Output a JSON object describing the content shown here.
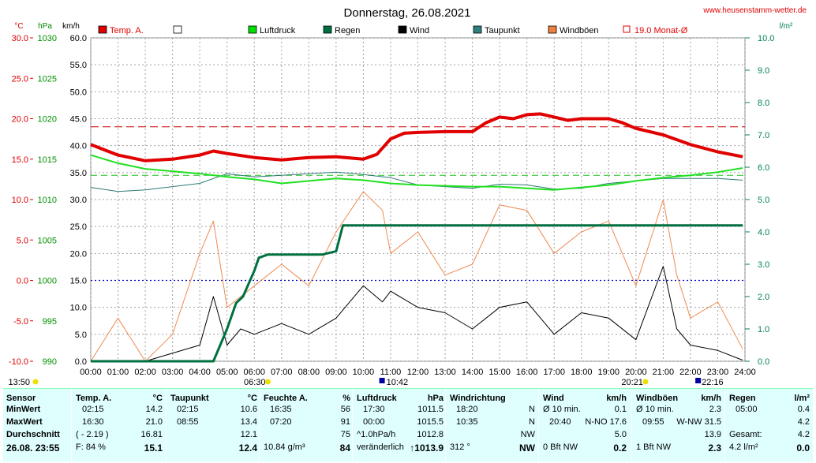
{
  "header": {
    "title": "Donnerstag, 26.08.2021",
    "website": "www.heusenstamm-wetter.de"
  },
  "axes": {
    "unit_temp": "°C",
    "unit_hpa": "hPa",
    "unit_kmh": "km/h",
    "unit_rain": "l/m²",
    "temp_ticks": [
      "30.0",
      "25.0",
      "20.0",
      "15.0",
      "10.0",
      "5.0",
      "0.0",
      "-5.0",
      "-10.0"
    ],
    "hpa_ticks": [
      "1030",
      "1025",
      "1020",
      "1015",
      "1010",
      "1005",
      "1000",
      "995",
      "990"
    ],
    "kmh_ticks": [
      "60.0",
      "55.0",
      "50.0",
      "45.0",
      "40.0",
      "35.0",
      "30.0",
      "25.0",
      "20.0",
      "15.0",
      "10.0",
      "5.0",
      "0.0"
    ],
    "rain_ticks": [
      "10.0",
      "9.0",
      "8.0",
      "7.0",
      "6.0",
      "5.0",
      "4.0",
      "3.0",
      "2.0",
      "1.0",
      "0.0"
    ],
    "time_ticks": [
      "00:00",
      "01:00",
      "02:00",
      "03:00",
      "04:00",
      "05:00",
      "06:00",
      "07:00",
      "08:00",
      "09:00",
      "10:00",
      "11:00",
      "12:00",
      "13:00",
      "14:00",
      "15:00",
      "16:00",
      "17:00",
      "18:00",
      "19:00",
      "20:00",
      "21:00",
      "22:00",
      "23:00",
      "24:00"
    ],
    "markers": {
      "moonrise": "13:50",
      "sunrise": "06:30",
      "windmax": "10:42",
      "sunset": "20:21",
      "moonset": "22:16"
    }
  },
  "legend": [
    {
      "label": "Temp. A.",
      "color": "#e00000",
      "kind": "box"
    },
    {
      "label": "",
      "color": "#ffffff",
      "kind": "box"
    },
    {
      "label": "Luftdruck",
      "color": "#00e000",
      "kind": "box"
    },
    {
      "label": "Regen",
      "color": "#007040",
      "kind": "box"
    },
    {
      "label": "Wind",
      "color": "#000000",
      "kind": "box"
    },
    {
      "label": "Taupunkt",
      "color": "#308080",
      "kind": "box"
    },
    {
      "label": "Windböen",
      "color": "#f08040",
      "kind": "box"
    },
    {
      "label": "19.0 Monat-Ø",
      "color": "#e00000",
      "kind": "outline"
    }
  ],
  "colors": {
    "temp": "#e00000",
    "pressure": "#20e020",
    "rain": "#007040",
    "wind": "#000000",
    "dewpoint": "#307878",
    "gust": "#f08a50",
    "grid": "#a0a0a0"
  },
  "chart_data": {
    "type": "line",
    "x_range": [
      "00:00",
      "24:00"
    ],
    "temp_range_C": [
      -10,
      30
    ],
    "pressure_range_hPa": [
      990,
      1030
    ],
    "wind_range_kmh": [
      0,
      60
    ],
    "rain_range_lm2": [
      0,
      10
    ],
    "reference_lines": {
      "monthly_avg_temp_C": 19.0,
      "zero_temp_C": 0.0,
      "pressure_ref_hPa": 1013.0
    },
    "series": [
      {
        "name": "Temp. A.",
        "unit": "°C",
        "x": [
          "00:00",
          "01:00",
          "02:00",
          "03:00",
          "04:00",
          "04:30",
          "05:00",
          "06:00",
          "07:00",
          "08:00",
          "09:00",
          "10:00",
          "10:30",
          "11:00",
          "11:30",
          "12:00",
          "13:00",
          "14:00",
          "14:30",
          "15:00",
          "15:30",
          "16:00",
          "16:30",
          "17:00",
          "17:30",
          "18:00",
          "19:00",
          "19:30",
          "20:00",
          "21:00",
          "22:00",
          "23:00",
          "23:55"
        ],
        "values": [
          16.8,
          15.5,
          14.8,
          15.0,
          15.5,
          16.0,
          15.7,
          15.2,
          14.9,
          15.2,
          15.3,
          15.0,
          15.6,
          17.5,
          18.2,
          18.3,
          18.4,
          18.4,
          19.5,
          20.2,
          20.0,
          20.5,
          20.6,
          20.2,
          19.8,
          20.0,
          20.0,
          19.5,
          18.8,
          18.0,
          16.8,
          15.9,
          15.3
        ]
      },
      {
        "name": "Luftdruck",
        "unit": "hPa",
        "x": [
          "00:00",
          "01:00",
          "02:00",
          "03:00",
          "04:00",
          "05:00",
          "06:00",
          "07:00",
          "08:00",
          "09:00",
          "10:00",
          "11:00",
          "12:00",
          "13:00",
          "14:00",
          "15:00",
          "16:00",
          "17:00",
          "18:00",
          "19:00",
          "20:00",
          "21:00",
          "22:00",
          "23:00",
          "23:55"
        ],
        "values": [
          1015.5,
          1014.5,
          1013.8,
          1013.5,
          1013.2,
          1012.8,
          1012.5,
          1012.0,
          1012.3,
          1012.6,
          1012.4,
          1012.0,
          1011.8,
          1011.7,
          1011.6,
          1011.6,
          1011.4,
          1011.2,
          1011.5,
          1011.8,
          1012.3,
          1012.7,
          1013.0,
          1013.4,
          1013.9
        ]
      },
      {
        "name": "Taupunkt",
        "unit": "°C",
        "x": [
          "00:00",
          "01:00",
          "02:00",
          "03:00",
          "04:00",
          "05:00",
          "06:00",
          "07:00",
          "08:00",
          "09:00",
          "10:00",
          "11:00",
          "12:00",
          "13:00",
          "14:00",
          "15:00",
          "16:00",
          "17:00",
          "18:00",
          "19:00",
          "20:00",
          "21:00",
          "22:00",
          "23:00",
          "23:55"
        ],
        "values": [
          11.5,
          11.0,
          11.2,
          11.6,
          12.0,
          13.2,
          12.8,
          13.0,
          13.2,
          13.4,
          13.1,
          12.7,
          11.8,
          11.6,
          11.4,
          11.9,
          11.8,
          11.3,
          11.4,
          12.0,
          12.3,
          12.6,
          12.6,
          12.6,
          12.4
        ]
      },
      {
        "name": "Regen",
        "unit": "l/m²",
        "x": [
          "00:00",
          "04:30",
          "05:00",
          "05:20",
          "05:35",
          "06:00",
          "06:10",
          "06:30",
          "07:30",
          "08:30",
          "09:00",
          "09:15",
          "13:00",
          "18:00",
          "23:55"
        ],
        "values": [
          0.0,
          0.0,
          1.0,
          1.8,
          2.0,
          2.8,
          3.2,
          3.3,
          3.3,
          3.3,
          3.4,
          4.2,
          4.2,
          4.2,
          4.2
        ]
      },
      {
        "name": "Wind",
        "unit": "km/h",
        "x": [
          "00:00",
          "02:00",
          "04:00",
          "04:30",
          "05:00",
          "05:30",
          "06:00",
          "07:00",
          "08:00",
          "09:00",
          "10:00",
          "10:42",
          "11:00",
          "12:00",
          "13:00",
          "14:00",
          "15:00",
          "16:00",
          "17:00",
          "18:00",
          "19:00",
          "20:00",
          "21:00",
          "21:30",
          "22:00",
          "23:00",
          "23:55"
        ],
        "values": [
          0.0,
          0.0,
          3.0,
          12.0,
          3.0,
          6.0,
          5.0,
          7.0,
          5.0,
          8.0,
          14.0,
          11.0,
          13.0,
          10.0,
          9.0,
          6.0,
          10.0,
          11.0,
          5.0,
          9.0,
          8.0,
          4.0,
          17.6,
          6.0,
          3.0,
          2.0,
          0.2
        ]
      },
      {
        "name": "Windböen",
        "unit": "km/h",
        "x": [
          "00:00",
          "01:00",
          "02:00",
          "03:00",
          "04:00",
          "04:30",
          "05:00",
          "06:00",
          "07:00",
          "08:00",
          "09:00",
          "10:00",
          "10:42",
          "11:00",
          "12:00",
          "13:00",
          "14:00",
          "15:00",
          "16:00",
          "17:00",
          "18:00",
          "19:00",
          "20:00",
          "21:00",
          "21:30",
          "22:00",
          "23:00",
          "23:55"
        ],
        "values": [
          0.0,
          8.0,
          0.0,
          5.0,
          20.0,
          26.0,
          10.0,
          14.0,
          18.0,
          14.0,
          24.0,
          31.5,
          28.0,
          20.0,
          24.0,
          16.0,
          18.0,
          29.0,
          28.0,
          20.0,
          24.0,
          26.0,
          14.0,
          30.0,
          16.0,
          8.0,
          11.0,
          2.3
        ]
      }
    ]
  },
  "table": {
    "col_sensor": {
      "header": "Sensor",
      "rows": [
        "MinWert",
        "MaxWert",
        "Durchschnitt"
      ],
      "footer": "26.08. 23:55"
    },
    "col_temp": {
      "header": "Temp. A.",
      "unit": "°C",
      "rows": [
        [
          "02:15",
          "14.2"
        ],
        [
          "16:30",
          "21.0"
        ],
        [
          "( - 2.19 )",
          "16.81"
        ]
      ],
      "footer": [
        "F: 84 %",
        "15.1"
      ]
    },
    "col_dew": {
      "header": "Taupunkt",
      "unit": "°C",
      "rows": [
        [
          "02:15",
          "10.6"
        ],
        [
          "08:55",
          "13.4"
        ],
        [
          "",
          "12.1"
        ]
      ],
      "footer": [
        "",
        "12.4"
      ]
    },
    "col_hum": {
      "header": "Feuchte A.",
      "unit": "%",
      "rows": [
        [
          "16:35",
          "56"
        ],
        [
          "07:20",
          "91"
        ],
        [
          "",
          "75"
        ]
      ],
      "footer": [
        "10.84 g/m³",
        "84"
      ]
    },
    "col_press": {
      "header": "Luftdruck",
      "unit": "hPa",
      "rows": [
        [
          "17:30",
          "1011.5"
        ],
        [
          "00:00",
          "1015.5"
        ],
        [
          "^1.0hPa/h",
          "1012.8"
        ]
      ],
      "footer": [
        "veränderlich",
        "↑1013.9"
      ]
    },
    "col_dir": {
      "header": "Windrichtung",
      "rows": [
        [
          "18:20",
          "N"
        ],
        [
          "10:35",
          "N"
        ],
        [
          "",
          "NW"
        ]
      ],
      "footer": [
        "312 °",
        "NW"
      ]
    },
    "col_wind": {
      "header": "Wind",
      "unit": "km/h",
      "rows": [
        [
          "Ø 10 min.",
          "0.1"
        ],
        [
          "20:40",
          "N-NO 17.6"
        ],
        [
          "",
          "5.0"
        ]
      ],
      "footer": [
        "0 Bft NW",
        "0.2"
      ]
    },
    "col_gust": {
      "header": "Windböen",
      "unit": "km/h",
      "rows": [
        [
          "Ø 10 min.",
          "2.3"
        ],
        [
          "09:55",
          "W-NW 31.5"
        ],
        [
          "",
          "13.9"
        ]
      ],
      "footer": [
        "1 Bft NW",
        "2.3"
      ]
    },
    "col_rain": {
      "header": "Regen",
      "unit": "l/m²",
      "rows": [
        [
          "05:00",
          "0.4"
        ],
        [
          "",
          "4.2"
        ],
        [
          "Gesamt:",
          "4.2"
        ]
      ],
      "footer": [
        "4.2 l/m²",
        "0.0"
      ]
    }
  }
}
